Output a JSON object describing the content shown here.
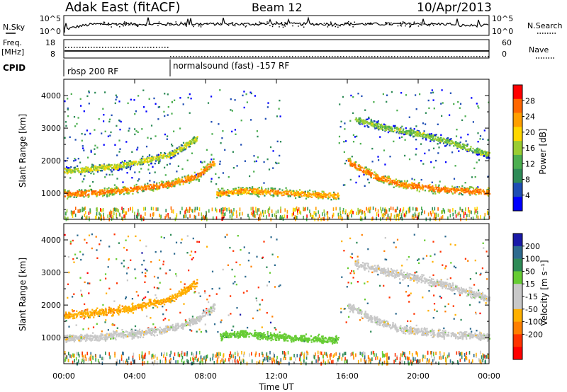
{
  "header": {
    "title": "Adak East (fitACF)",
    "beam": "Beam 12",
    "date": "10/Apr/2013"
  },
  "nsky": {
    "label": "N.Sky",
    "left_ticks": [
      "10^5",
      "10^0"
    ],
    "right_label": "N.Search",
    "right_ticks": [
      "10^5",
      "10^0"
    ]
  },
  "freq": {
    "label": "Freq.",
    "unit": "[MHz]",
    "left_ticks": [
      "18",
      "8"
    ],
    "right_label": "Nave",
    "right_ticks": [
      "60",
      "0"
    ]
  },
  "cpid": {
    "label": "CPID",
    "segments": [
      "rbsp 200 RF",
      "normalsound (fast) -157 RF"
    ]
  },
  "colors": {
    "power_scale": [
      "#0000ff",
      "#1e4db4",
      "#2e8b57",
      "#4caf50",
      "#9acd32",
      "#ffd700",
      "#ff9f00",
      "#ff6600",
      "#ff0000"
    ],
    "velocity_scale": [
      "#1a1aa8",
      "#2e6b8f",
      "#2e8b57",
      "#66cc33",
      "#c8c8c8",
      "#c8c8c8",
      "#ffb000",
      "#ff7f00",
      "#ff3300",
      "#ff0000"
    ]
  },
  "chart_data": [
    {
      "type": "heatmap",
      "panel": "power",
      "ylabel": "Slant Range [km]",
      "ylim": [
        200,
        4500
      ],
      "y_ticks": [
        "1000",
        "2000",
        "3000",
        "4000"
      ],
      "xlim": [
        0,
        24
      ],
      "colorbar_label": "Power [dB]",
      "colorbar_ticks": [
        "4",
        "8",
        "12",
        "16",
        "20",
        "24",
        "28"
      ],
      "colorbar_range": [
        0,
        32
      ],
      "features": [
        {
          "x": [
            0,
            2,
            4,
            6,
            7.5,
            8.5
          ],
          "y": [
            1000,
            1050,
            1150,
            1300,
            1550,
            2000
          ],
          "level": 22
        },
        {
          "x": [
            0,
            3,
            6,
            7.5
          ],
          "y": [
            1700,
            1850,
            2200,
            2700
          ],
          "level": 14
        },
        {
          "x": [
            8.6,
            10,
            12,
            14,
            15.5
          ],
          "y": [
            1000,
            1100,
            1050,
            980,
            940
          ],
          "level": 20
        },
        {
          "x": [
            16,
            17.5,
            19,
            21,
            24
          ],
          "y": [
            2000,
            1550,
            1300,
            1150,
            1050
          ],
          "level": 22
        },
        {
          "x": [
            16.4,
            18,
            20,
            22,
            24
          ],
          "y": [
            3300,
            3050,
            2850,
            2550,
            2200
          ],
          "level": 12
        }
      ]
    },
    {
      "type": "heatmap",
      "panel": "velocity",
      "ylabel": "Slant Range [km]",
      "ylim": [
        200,
        4500
      ],
      "y_ticks": [
        "1000",
        "2000",
        "3000",
        "4000"
      ],
      "xlabel": "Time UT",
      "x_ticks": [
        "00:00",
        "04:00",
        "08:00",
        "12:00",
        "16:00",
        "20:00",
        "00:00"
      ],
      "xlim": [
        0,
        24
      ],
      "colorbar_label": "Velocity [m s⁻¹]",
      "colorbar_ticks": [
        "200",
        "100",
        "50",
        "15",
        "-15",
        "-50",
        "-100",
        "-200"
      ],
      "features": [
        {
          "x": [
            0,
            2,
            4,
            6,
            7.5,
            8.5
          ],
          "y": [
            1000,
            1050,
            1150,
            1300,
            1550,
            2000
          ],
          "velocity": 0
        },
        {
          "x": [
            0,
            3,
            6,
            7.5
          ],
          "y": [
            1700,
            1850,
            2200,
            2700
          ],
          "velocity": -40
        },
        {
          "x": [
            8.8,
            10,
            12,
            14,
            15.5
          ],
          "y": [
            1050,
            1150,
            1050,
            980,
            940
          ],
          "velocity": 35
        },
        {
          "x": [
            16,
            17.5,
            19,
            21,
            24
          ],
          "y": [
            2000,
            1550,
            1300,
            1150,
            1050
          ],
          "velocity": 0
        },
        {
          "x": [
            16.4,
            18,
            20,
            22,
            24
          ],
          "y": [
            3300,
            3050,
            2850,
            2550,
            2200
          ],
          "velocity": 0
        }
      ]
    }
  ]
}
